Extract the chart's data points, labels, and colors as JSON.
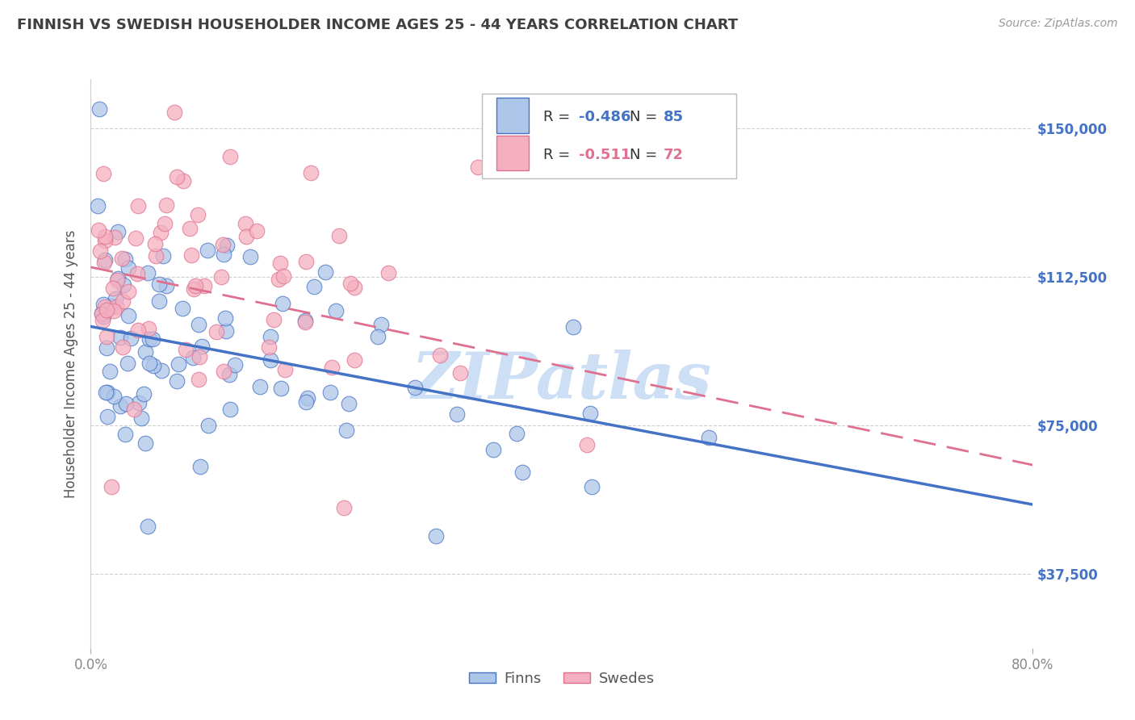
{
  "title": "FINNISH VS SWEDISH HOUSEHOLDER INCOME AGES 25 - 44 YEARS CORRELATION CHART",
  "source_text": "Source: ZipAtlas.com",
  "ylabel": "Householder Income Ages 25 - 44 years",
  "xlim": [
    0.0,
    80.0
  ],
  "ylim": [
    18750,
    162500
  ],
  "yticks": [
    37500,
    75000,
    112500,
    150000
  ],
  "ytick_labels": [
    "$37,500",
    "$75,000",
    "$112,500",
    "$150,000"
  ],
  "finn_R": -0.486,
  "finn_N": 85,
  "swede_R": -0.511,
  "swede_N": 72,
  "finn_color": "#aec6e8",
  "swede_color": "#f4afc0",
  "finn_line_color": "#4472c4",
  "swede_line_color": "#e07090",
  "background_color": "#ffffff",
  "grid_color": "#d0d0d0",
  "title_color": "#404040",
  "right_tick_color": "#4472c4",
  "watermark_color": "#cddff5",
  "finn_line_x0": 0,
  "finn_line_y0": 100000,
  "finn_line_x1": 80,
  "finn_line_y1": 55000,
  "swede_line_x0": 0,
  "swede_line_y0": 115000,
  "swede_line_x1": 80,
  "swede_line_y1": 65000
}
